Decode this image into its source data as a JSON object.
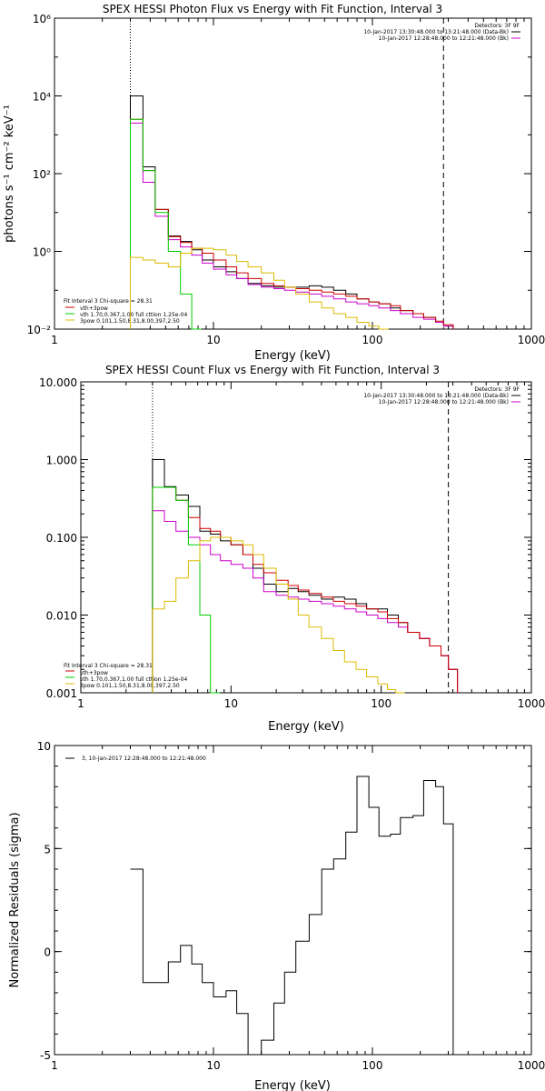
{
  "chart_data": [
    {
      "type": "line",
      "title": "SPEX HESSI Photon Flux vs Energy with Fit Function, Interval 3",
      "xlabel": "Energy (keV)",
      "ylabel": "photons s⁻¹ cm⁻² keV⁻¹",
      "xlog": true,
      "ylog": true,
      "xlim": [
        1,
        1000
      ],
      "ylim": [
        0.01,
        1000000
      ],
      "xticks": [
        1,
        10,
        100,
        1000
      ],
      "xticklabels": [
        "1",
        "10",
        "100",
        "1000"
      ],
      "yticks": [
        0.01,
        1,
        100,
        10000,
        1000000
      ],
      "yticklabels": [
        "10⁻²",
        "10⁰",
        "10²",
        "10⁴",
        "10⁶"
      ],
      "vlines": [
        {
          "x": 3,
          "style": "dotted"
        },
        {
          "x": 280,
          "style": "dashed"
        }
      ],
      "legend_top_right": {
        "header": "Detectors: 3F 9F",
        "entries": [
          {
            "text": "10-Jan-2017 13:30:48.000 to 13:21:48.000 (Data-Bk)",
            "color": "#000000"
          },
          {
            "text": "10-Jan-2017 12:28:48.000 to 12:21:48.000 (Bk)",
            "color": "#cc00cc"
          }
        ]
      },
      "legend_bottom_left": {
        "header": "Fit Interval 3   Chi-square = 28.31",
        "entries": [
          {
            "text": "vth+3pow",
            "color": "#cc0000"
          },
          {
            "text": "vth 1.70,0.367,1.00  full cttion 1.25e-04",
            "color": "#00cc00"
          },
          {
            "text": "3pow 0.101,1.50,8.31,8.00,397,2.50",
            "color": "#ddbb00"
          }
        ]
      },
      "series": [
        {
          "color": "#000000",
          "x": [
            3,
            3.6,
            4.3,
            5.2,
            6.2,
            7.3,
            8.5,
            10,
            12,
            14,
            16.5,
            20,
            24,
            28,
            33,
            40,
            48,
            57,
            68,
            80,
            95,
            110,
            130,
            150,
            180,
            210,
            250,
            280
          ],
          "y": [
            10000,
            150,
            12,
            2.5,
            1.8,
            1.1,
            0.6,
            0.4,
            0.3,
            0.2,
            0.15,
            0.13,
            0.12,
            0.12,
            0.12,
            0.13,
            0.12,
            0.1,
            0.08,
            0.06,
            0.05,
            0.045,
            0.035,
            0.03,
            0.025,
            0.02,
            0.015,
            0.012
          ]
        },
        {
          "color": "#cc00cc",
          "x": [
            3,
            3.6,
            4.3,
            5.2,
            6.2,
            7.3,
            8.5,
            10,
            12,
            14,
            16.5,
            20,
            24,
            28,
            33,
            40,
            48,
            57,
            68,
            80,
            95,
            110,
            130,
            150,
            180,
            210,
            250,
            280
          ],
          "y": [
            2000,
            60,
            8,
            2.0,
            1.3,
            0.8,
            0.5,
            0.35,
            0.25,
            0.2,
            0.14,
            0.12,
            0.11,
            0.1,
            0.09,
            0.08,
            0.07,
            0.06,
            0.05,
            0.045,
            0.04,
            0.035,
            0.03,
            0.025,
            0.02,
            0.018,
            0.015,
            0.012
          ]
        },
        {
          "color": "#cc0000",
          "x": [
            3,
            3.6,
            4.3,
            5.2,
            6.2,
            7.3,
            8.5,
            10,
            12,
            14,
            16.5,
            20,
            24,
            28,
            33,
            40,
            48,
            57,
            68,
            80,
            95,
            110,
            130,
            150,
            180,
            210,
            250,
            280
          ],
          "y": [
            2500,
            120,
            12,
            2.4,
            1.7,
            1.2,
            0.9,
            0.6,
            0.4,
            0.28,
            0.2,
            0.15,
            0.13,
            0.12,
            0.11,
            0.1,
            0.09,
            0.08,
            0.07,
            0.06,
            0.05,
            0.045,
            0.04,
            0.03,
            0.025,
            0.02,
            0.016,
            0.013
          ]
        },
        {
          "color": "#00cc00",
          "x": [
            3,
            3.6,
            4.3,
            5.2,
            6.2,
            7.3
          ],
          "y": [
            2500,
            120,
            10,
            1.0,
            0.08,
            0.01
          ]
        },
        {
          "color": "#ddbb00",
          "x": [
            3,
            3.6,
            4.3,
            5.2,
            6.2,
            7.3,
            8.5,
            10,
            12,
            14,
            16.5,
            20,
            24,
            28,
            33,
            40,
            48,
            57,
            68,
            80,
            95,
            110
          ],
          "y": [
            0.7,
            0.6,
            0.5,
            0.4,
            0.9,
            1.2,
            1.2,
            1.1,
            0.8,
            0.55,
            0.4,
            0.28,
            0.18,
            0.12,
            0.08,
            0.05,
            0.035,
            0.025,
            0.02,
            0.015,
            0.012,
            0.01
          ]
        }
      ]
    },
    {
      "type": "line",
      "title": "SPEX HESSI Count Flux vs Energy with Fit Function, Interval 3",
      "xlabel": "Energy (keV)",
      "ylabel": "",
      "xlog": true,
      "ylog": true,
      "xlim": [
        1,
        1000
      ],
      "ylim": [
        0.001,
        10
      ],
      "xticks": [
        1,
        10,
        100,
        1000
      ],
      "xticklabels": [
        "1",
        "10",
        "100",
        "1000"
      ],
      "yticks": [
        0.001,
        0.01,
        0.1,
        1,
        10
      ],
      "yticklabels": [
        "0.001",
        "0.010",
        "0.100",
        "1.000",
        "10.000"
      ],
      "vlines": [
        {
          "x": 3,
          "style": "dotted"
        },
        {
          "x": 280,
          "style": "dashed"
        }
      ],
      "legend_top_right": {
        "header": "Detectors: 3F 9F",
        "entries": [
          {
            "text": "10-Jan-2017 13:30:48.000 to 13:21:48.000 (Data-Bk)",
            "color": "#000000"
          },
          {
            "text": "10-Jan-2017 12:28:48.000 to 12:21:48.000 (Bk)",
            "color": "#cc00cc"
          }
        ]
      },
      "legend_bottom_left": {
        "header": "Fit Interval 3   Chi-square = 28.31",
        "entries": [
          {
            "text": "vth+3pow",
            "color": "#cc0000"
          },
          {
            "text": "vth 1.70,0.367,1.00  full cttion 1.25e-04",
            "color": "#00cc00"
          },
          {
            "text": "3pow 0.101,1.50,8.31,8.00,397,2.50",
            "color": "#ddbb00"
          }
        ]
      },
      "series": [
        {
          "color": "#000000",
          "x": [
            3,
            3.6,
            4.3,
            5.2,
            6.2,
            7.3,
            8.5,
            10,
            12,
            14,
            16.5,
            20,
            24,
            28,
            33,
            40,
            48,
            57,
            68,
            80,
            95,
            110,
            130,
            150,
            180,
            210,
            250,
            280
          ],
          "y": [
            1.0,
            0.45,
            0.35,
            0.25,
            0.12,
            0.11,
            0.09,
            0.08,
            0.06,
            0.04,
            0.025,
            0.02,
            0.022,
            0.02,
            0.018,
            0.016,
            0.017,
            0.016,
            0.014,
            0.012,
            0.012,
            0.01,
            0.008,
            0.006,
            0.005,
            0.004,
            0.003,
            0.002
          ]
        },
        {
          "color": "#cc00cc",
          "x": [
            3,
            3.6,
            4.3,
            5.2,
            6.2,
            7.3,
            8.5,
            10,
            12,
            14,
            16.5,
            20,
            24,
            28,
            33,
            40,
            48,
            57,
            68,
            80,
            95,
            110,
            130,
            150,
            180,
            210,
            250,
            280
          ],
          "y": [
            0.22,
            0.16,
            0.12,
            0.1,
            0.08,
            0.06,
            0.05,
            0.045,
            0.04,
            0.03,
            0.02,
            0.018,
            0.017,
            0.016,
            0.015,
            0.014,
            0.013,
            0.012,
            0.011,
            0.01,
            0.009,
            0.008,
            0.007,
            0.006,
            0.005,
            0.004,
            0.003,
            0.002
          ]
        },
        {
          "color": "#cc0000",
          "x": [
            3,
            3.6,
            4.3,
            5.2,
            6.2,
            7.3,
            8.5,
            10,
            12,
            14,
            16.5,
            20,
            24,
            28,
            33,
            40,
            48,
            57,
            68,
            80,
            95,
            110,
            130,
            150,
            180,
            210,
            250,
            280
          ],
          "y": [
            0.44,
            0.44,
            0.3,
            0.18,
            0.13,
            0.12,
            0.1,
            0.08,
            0.06,
            0.045,
            0.035,
            0.028,
            0.024,
            0.021,
            0.019,
            0.017,
            0.015,
            0.014,
            0.013,
            0.012,
            0.011,
            0.009,
            0.008,
            0.006,
            0.005,
            0.004,
            0.003,
            0.002
          ]
        },
        {
          "color": "#00cc00",
          "x": [
            3,
            3.6,
            4.3,
            5.2,
            6.2,
            7.3
          ],
          "y": [
            0.44,
            0.44,
            0.3,
            0.08,
            0.01,
            0.001
          ]
        },
        {
          "color": "#ddbb00",
          "x": [
            3,
            3.6,
            4.3,
            5.2,
            6.2,
            7.3,
            8.5,
            10,
            12,
            14,
            16.5,
            20,
            24,
            28,
            33,
            40,
            48,
            57,
            68,
            80,
            95,
            110,
            125
          ],
          "y": [
            0.012,
            0.015,
            0.03,
            0.05,
            0.09,
            0.1,
            0.1,
            0.09,
            0.08,
            0.06,
            0.04,
            0.025,
            0.016,
            0.01,
            0.007,
            0.005,
            0.0035,
            0.0025,
            0.002,
            0.0016,
            0.0013,
            0.0011,
            0.001
          ]
        }
      ]
    },
    {
      "type": "line",
      "title": "",
      "xlabel": "Energy (keV)",
      "ylabel": "Normalized Residuals (sigma)",
      "xlog": true,
      "ylog": false,
      "xlim": [
        1,
        1000
      ],
      "ylim": [
        -5,
        10
      ],
      "xticks": [
        1,
        10,
        100,
        1000
      ],
      "xticklabels": [
        "1",
        "10",
        "100",
        "1000"
      ],
      "yticks": [
        -5,
        0,
        5,
        10
      ],
      "yticklabels": [
        "-5",
        "0",
        "5",
        "10"
      ],
      "legend_top_left": {
        "entries": [
          {
            "text": "3, 10-Jan-2017 12:28:48.000 to 12:21:48.000",
            "color": "#000000"
          }
        ]
      },
      "series": [
        {
          "color": "#000000",
          "x": [
            3,
            3.6,
            4.3,
            5.2,
            6.2,
            7.3,
            8.5,
            10,
            12,
            14,
            16.5,
            20,
            24,
            28,
            33,
            40,
            48,
            57,
            68,
            80,
            95,
            110,
            130,
            150,
            180,
            210,
            250,
            280
          ],
          "y": [
            4.0,
            -1.5,
            -1.5,
            -0.5,
            0.3,
            -0.6,
            -1.5,
            -2.2,
            -1.9,
            -3.0,
            -5.0,
            -4.3,
            -2.5,
            -1.0,
            0.5,
            1.8,
            4.0,
            4.5,
            5.8,
            8.5,
            7.0,
            5.6,
            5.7,
            6.5,
            6.6,
            8.3,
            8.0,
            6.2
          ]
        }
      ]
    }
  ]
}
